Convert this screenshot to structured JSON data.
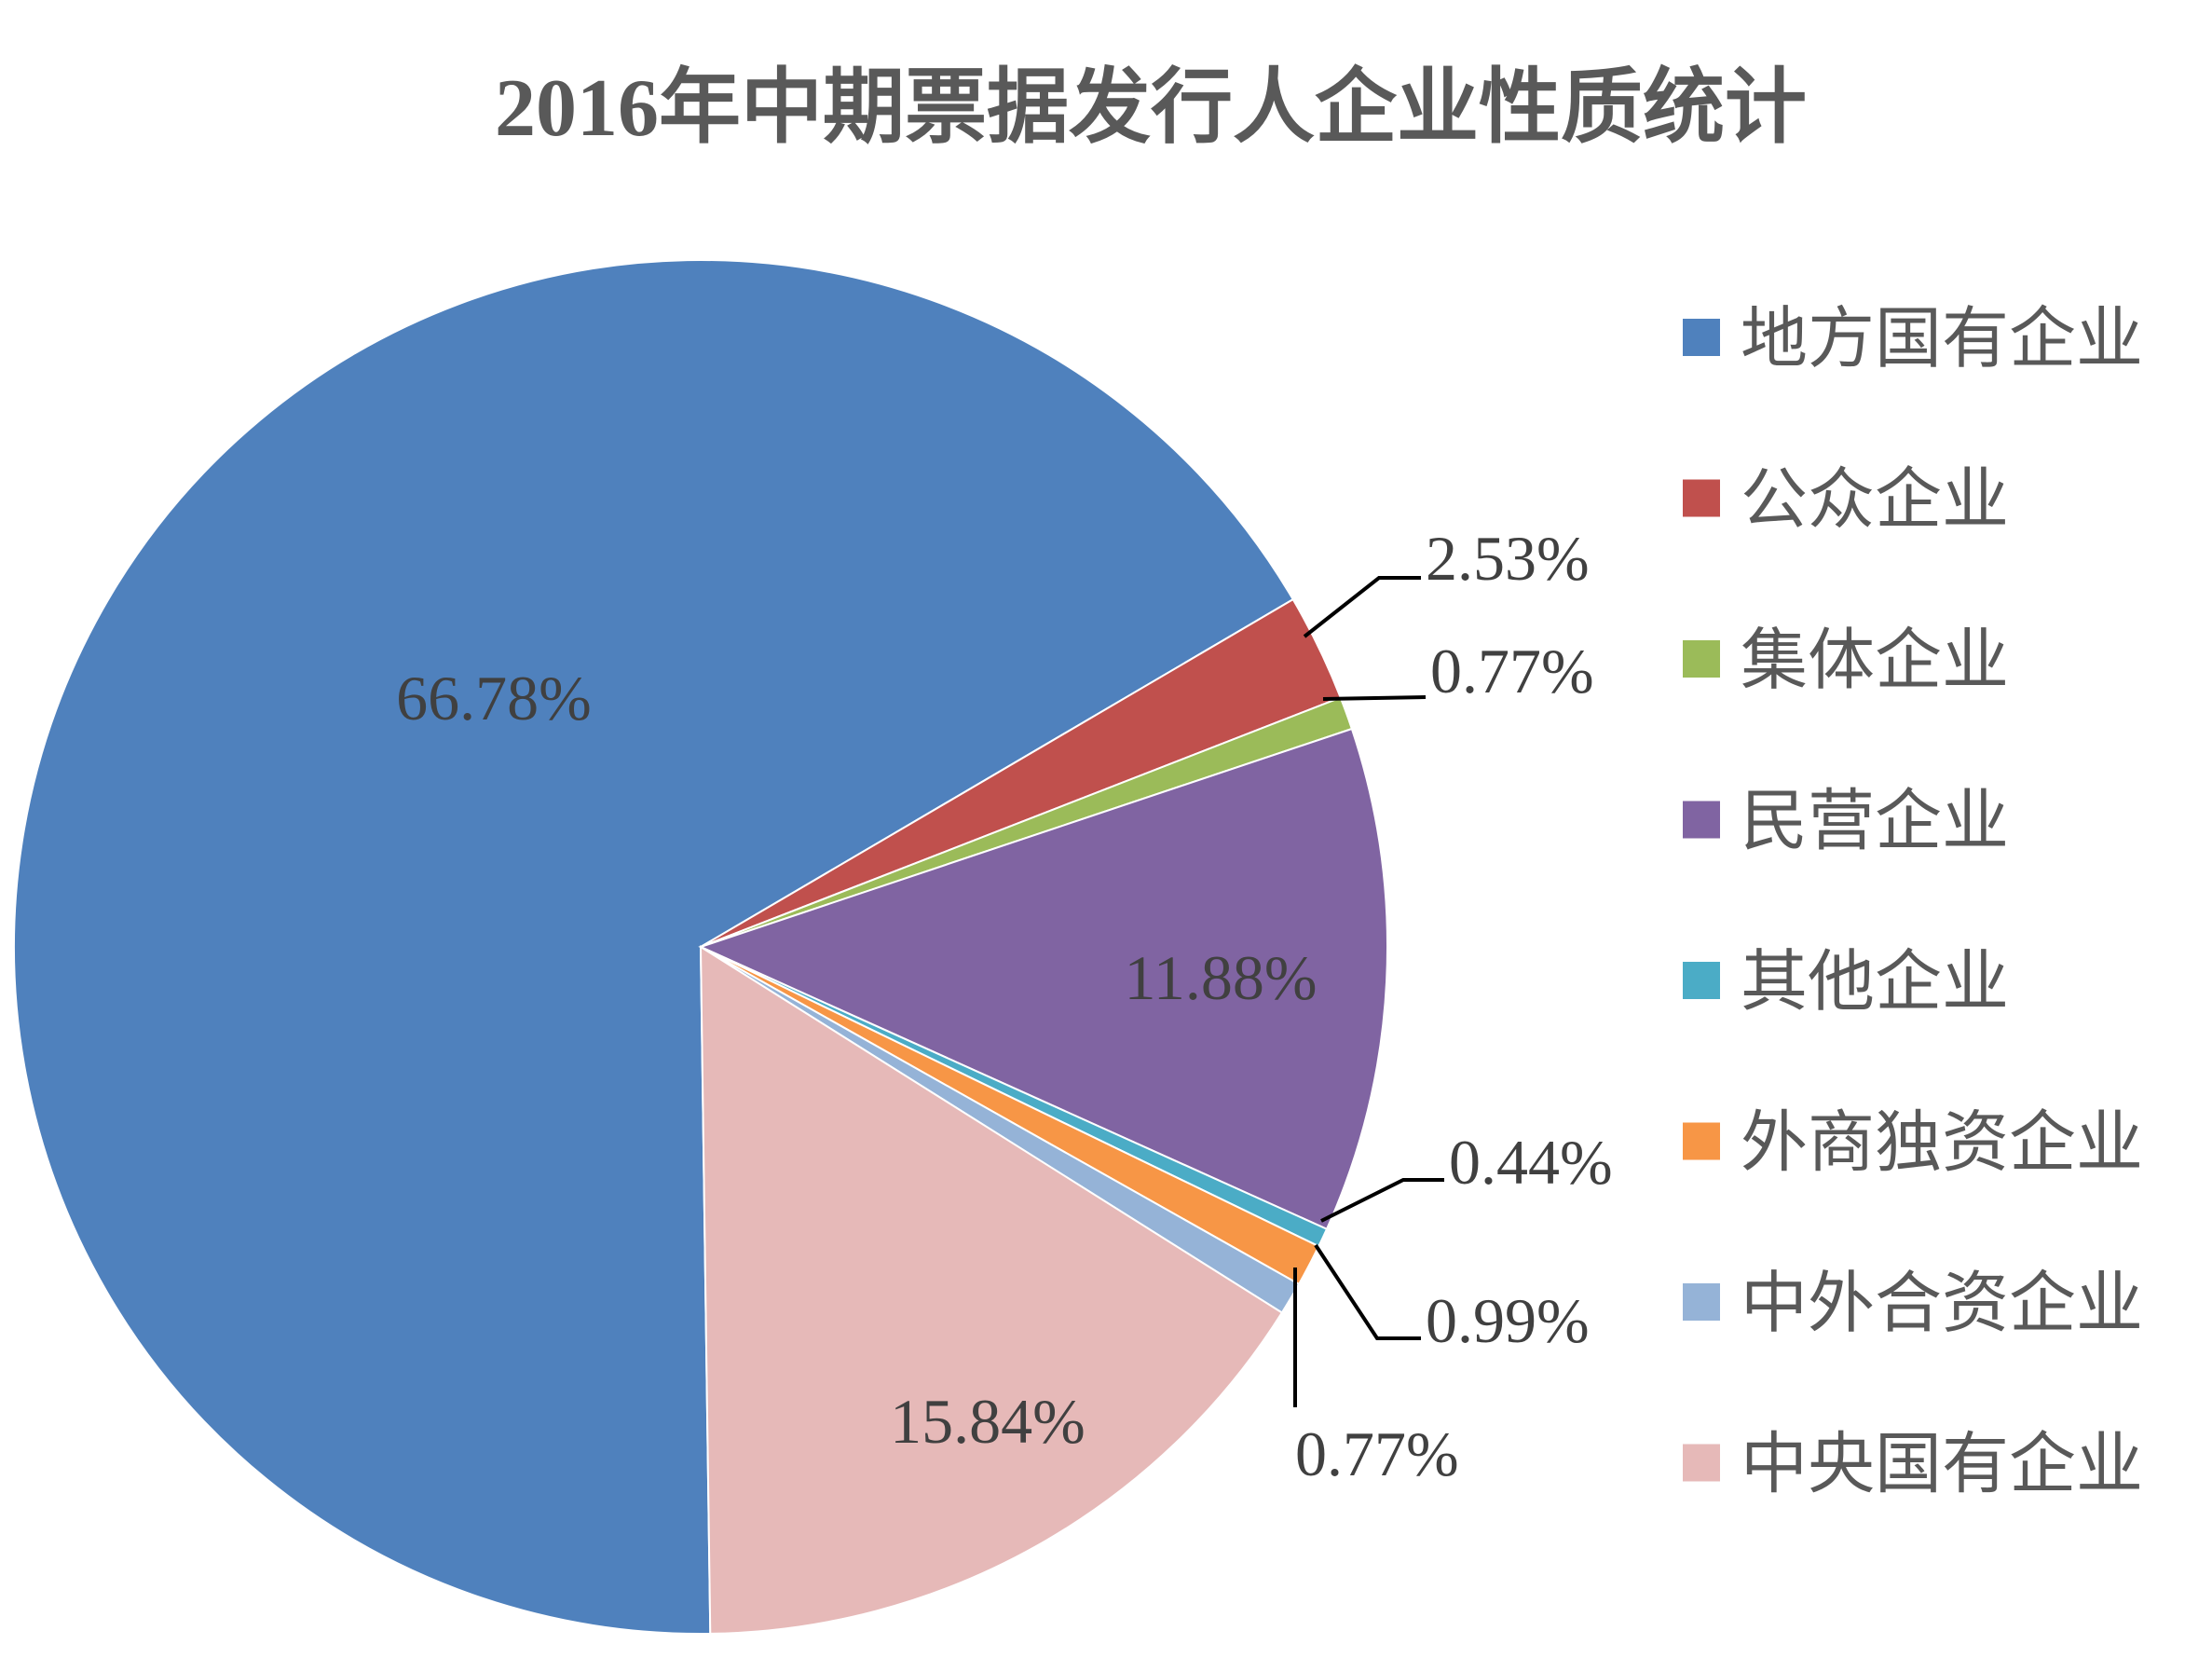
{
  "chart_data": {
    "type": "pie",
    "title": "2016年中期票据发行人企业性质统计",
    "legend_position": "right",
    "categories": [
      "地方国有企业",
      "公众企业",
      "集体企业",
      "民营企业",
      "其他企业",
      "外商独资企业",
      "中外合资企业",
      "中央国有企业"
    ],
    "values": [
      66.78,
      2.53,
      0.77,
      11.88,
      0.44,
      0.99,
      0.77,
      15.84
    ],
    "labels": [
      "66.78%",
      "2.53%",
      "0.77%",
      "11.88%",
      "0.44%",
      "0.99%",
      "0.77%",
      "15.84%"
    ],
    "colors": [
      "#4F81BD",
      "#C0504D",
      "#9BBB59",
      "#8064A2",
      "#4BACC6",
      "#F79646",
      "#95B3D7",
      "#E6B9B8"
    ]
  }
}
